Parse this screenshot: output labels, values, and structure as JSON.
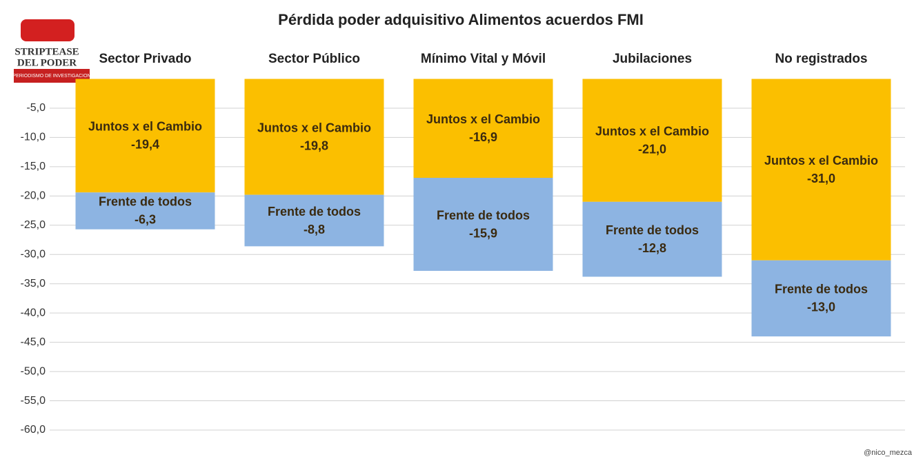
{
  "chart_data": {
    "type": "bar",
    "stacked": true,
    "title": "Pérdida poder adquisitivo Alimentos acuerdos FMI",
    "categories": [
      "Sector Privado",
      "Sector Público",
      "Mínimo Vital y Móvil",
      "Jubilaciones",
      "No registrados"
    ],
    "series": [
      {
        "name": "Juntos x el Cambio",
        "color": "#fbbf00",
        "values": [
          -19.4,
          -19.8,
          -16.9,
          -21.0,
          -31.0
        ],
        "value_labels": [
          "-19,4",
          "-19,8",
          "-16,9",
          "-21,0",
          "-31,0"
        ]
      },
      {
        "name": "Frente de todos",
        "color": "#8db4e2",
        "values": [
          -6.3,
          -8.8,
          -15.9,
          -12.8,
          -13.0
        ],
        "value_labels": [
          "-6,3",
          "-8,8",
          "-15,9",
          "-12,8",
          "-13,0"
        ]
      }
    ],
    "ylim": [
      0,
      -62
    ],
    "yticks": [
      {
        "value": -5,
        "label": "-5,0"
      },
      {
        "value": -10,
        "label": "-10,0"
      },
      {
        "value": -15,
        "label": "-15,0"
      },
      {
        "value": -20,
        "label": "-20,0"
      },
      {
        "value": -25,
        "label": "-25,0"
      },
      {
        "value": -30,
        "label": "-30,0"
      },
      {
        "value": -35,
        "label": "-35,0"
      },
      {
        "value": -40,
        "label": "-40,0"
      },
      {
        "value": -45,
        "label": "-45,0"
      },
      {
        "value": -50,
        "label": "-50,0"
      },
      {
        "value": -55,
        "label": "-55,0"
      },
      {
        "value": -60,
        "label": "-60,0"
      }
    ],
    "grid": true,
    "annotations": [
      "STRIPTEASE",
      "DEL PODER",
      "PERIODISMO DE INVESTIGACION",
      "@nico_mezca"
    ]
  }
}
